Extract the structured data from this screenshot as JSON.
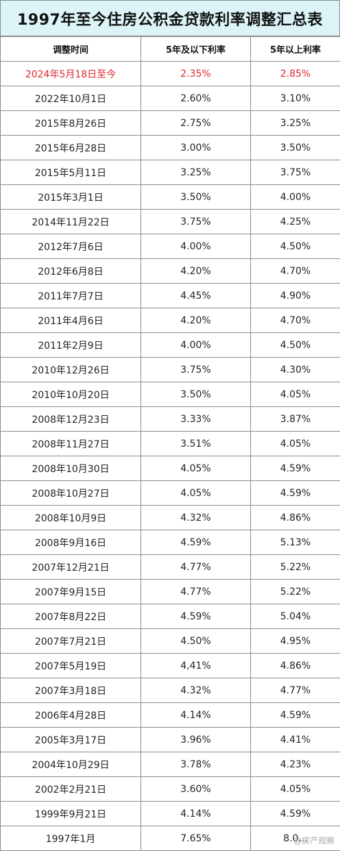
{
  "title": "1997年至今住房公积金贷款利率调整汇总表",
  "headers": [
    "调整时间",
    "5年及以下利率",
    "5年以上利率"
  ],
  "highlight_color": "#e0262b",
  "header_bg": "#dcf4f7",
  "rows": [
    {
      "date": "2024年5月18日至今",
      "short": "2.35%",
      "long": "2.85%"
    },
    {
      "date": "2022年10月1日",
      "short": "2.60%",
      "long": "3.10%"
    },
    {
      "date": "2015年8月26日",
      "short": "2.75%",
      "long": "3.25%"
    },
    {
      "date": "2015年6月28日",
      "short": "3.00%",
      "long": "3.50%"
    },
    {
      "date": "2015年5月11日",
      "short": "3.25%",
      "long": "3.75%"
    },
    {
      "date": "2015年3月1日",
      "short": "3.50%",
      "long": "4.00%"
    },
    {
      "date": "2014年11月22日",
      "short": "3.75%",
      "long": "4.25%"
    },
    {
      "date": "2012年7月6日",
      "short": "4.00%",
      "long": "4.50%"
    },
    {
      "date": "2012年6月8日",
      "short": "4.20%",
      "long": "4.70%"
    },
    {
      "date": "2011年7月7日",
      "short": "4.45%",
      "long": "4.90%"
    },
    {
      "date": "2011年4月6日",
      "short": "4.20%",
      "long": "4.70%"
    },
    {
      "date": "2011年2月9日",
      "short": "4.00%",
      "long": "4.50%"
    },
    {
      "date": "2010年12月26日",
      "short": "3.75%",
      "long": "4.30%"
    },
    {
      "date": "2010年10月20日",
      "short": "3.50%",
      "long": "4.05%"
    },
    {
      "date": "2008年12月23日",
      "short": "3.33%",
      "long": "3.87%"
    },
    {
      "date": "2008年11月27日",
      "short": "3.51%",
      "long": "4.05%"
    },
    {
      "date": "2008年10月30日",
      "short": "4.05%",
      "long": "4.59%"
    },
    {
      "date": "2008年10月27日",
      "short": "4.05%",
      "long": "4.59%"
    },
    {
      "date": "2008年10月9日",
      "short": "4.32%",
      "long": "4.86%"
    },
    {
      "date": "2008年9月16日",
      "short": "4.59%",
      "long": "5.13%"
    },
    {
      "date": "2007年12月21日",
      "short": "4.77%",
      "long": "5.22%"
    },
    {
      "date": "2007年9月15日",
      "short": "4.77%",
      "long": "5.22%"
    },
    {
      "date": "2007年8月22日",
      "short": "4.59%",
      "long": "5.04%"
    },
    {
      "date": "2007年7月21日",
      "short": "4.50%",
      "long": "4.95%"
    },
    {
      "date": "2007年5月19日",
      "short": "4,41%",
      "long": "4.86%"
    },
    {
      "date": "2007年3月18日",
      "short": "4.32%",
      "long": "4.77%"
    },
    {
      "date": "2006年4月28日",
      "short": "4.14%",
      "long": "4.59%"
    },
    {
      "date": "2005年3月17日",
      "short": "3.96%",
      "long": "4.41%"
    },
    {
      "date": "2004年10月29日",
      "short": "3.78%",
      "long": "4.23%"
    },
    {
      "date": "2002年2月21日",
      "short": "3.60%",
      "long": "4.05%"
    },
    {
      "date": "1999年9月21日",
      "short": "4.14%",
      "long": "4.59%"
    },
    {
      "date": "1997年1月",
      "short": "7.65%",
      "long": "8.0..."
    }
  ],
  "watermark": "@房产观察"
}
